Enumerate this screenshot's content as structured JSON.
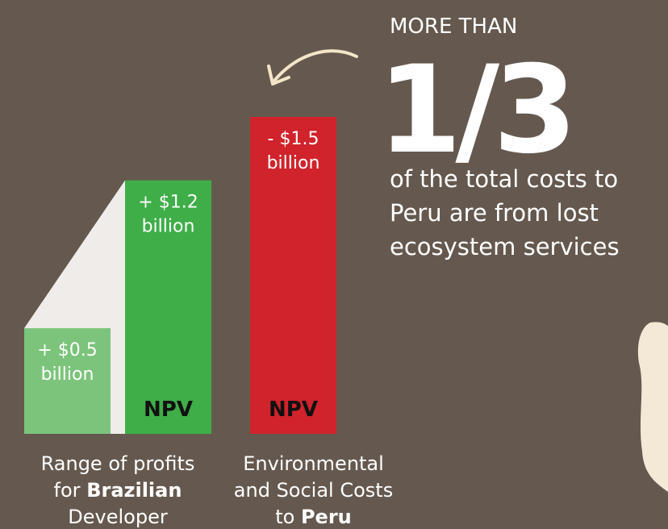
{
  "chart_data": {
    "type": "bar",
    "bars": [
      {
        "value": 0.5,
        "value_label": [
          "+ $0.5",
          "billion"
        ],
        "color": "#7cc47c"
      },
      {
        "value": 1.2,
        "value_label": [
          "+ $1.2",
          "billion"
        ],
        "color": "#3fae49",
        "tag": "NPV"
      },
      {
        "value": -1.5,
        "value_label": [
          "- $1.5",
          "billion"
        ],
        "color": "#d0232b",
        "tag": "NPV"
      }
    ],
    "groups": [
      {
        "bars": [
          0,
          1
        ],
        "label": [
          [
            {
              "text": "Range of profits"
            }
          ],
          [
            {
              "text": "for "
            },
            {
              "text": "Brazilian",
              "bold": true
            }
          ],
          [
            {
              "text": "Developer"
            }
          ]
        ]
      },
      {
        "bars": [
          2
        ],
        "label": [
          [
            {
              "text": "Environmental"
            }
          ],
          [
            {
              "text": "and Social Costs"
            }
          ],
          [
            {
              "text": "to "
            },
            {
              "text": "Peru",
              "bold": true
            }
          ]
        ]
      }
    ],
    "callout": {
      "kicker": "MORE THAN",
      "figure": "1/3",
      "text": [
        "of the total costs to",
        "Peru are from lost",
        "ecosystem services"
      ]
    }
  }
}
